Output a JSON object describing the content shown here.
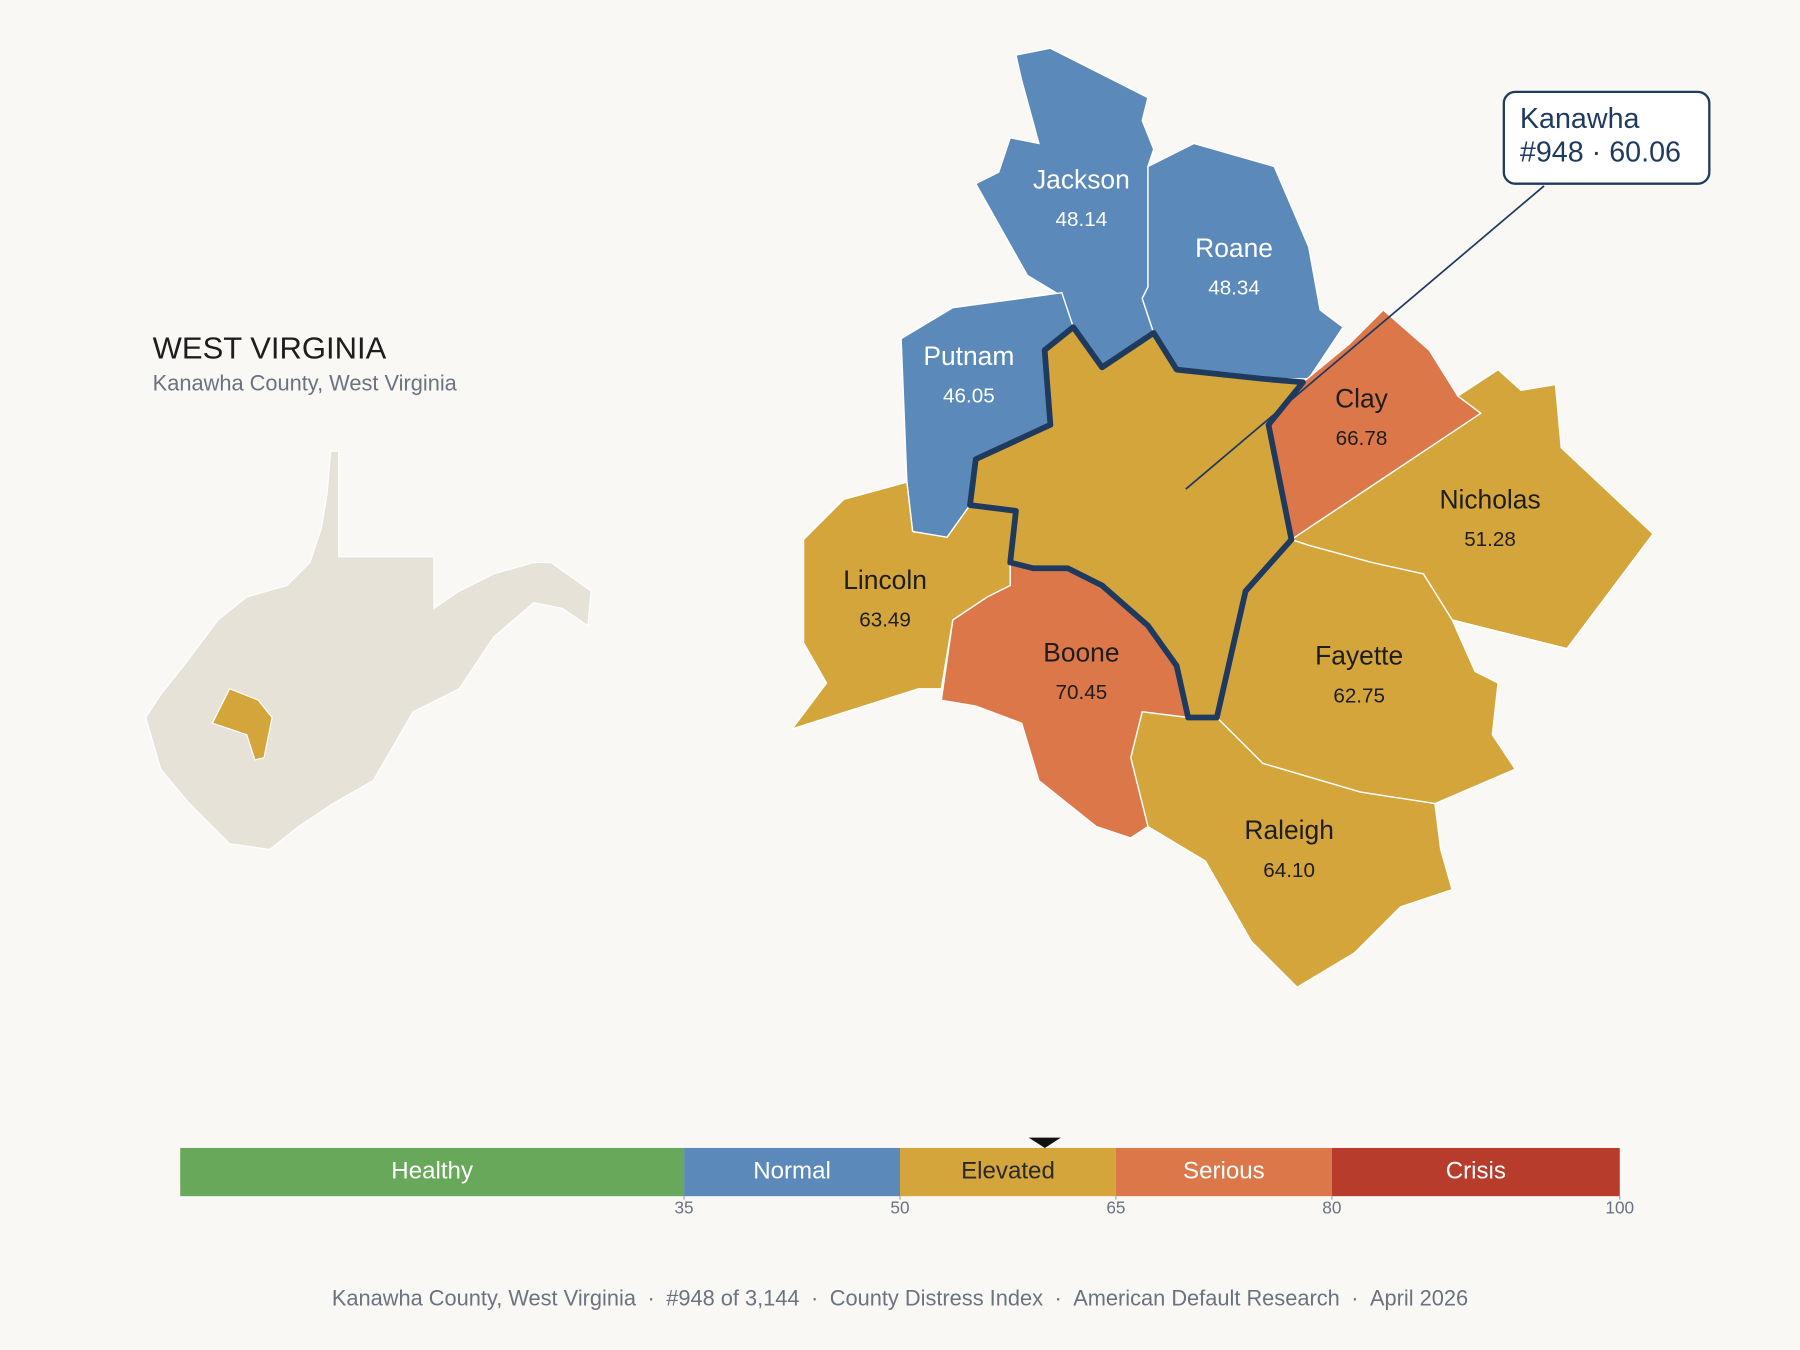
{
  "header": {
    "title": "WEST VIRGINIA",
    "subtitle": "Kanawha County, West Virginia"
  },
  "selected": {
    "name": "Kanawha",
    "value": 60.06,
    "label": "#948 · 60.06"
  },
  "counties": [
    {
      "name": "Jackson",
      "value": 48.14,
      "value_label": "48.14"
    },
    {
      "name": "Roane",
      "value": 48.34,
      "value_label": "48.34"
    },
    {
      "name": "Putnam",
      "value": 46.05,
      "value_label": "46.05"
    },
    {
      "name": "Clay",
      "value": 66.78,
      "value_label": "66.78"
    },
    {
      "name": "Nicholas",
      "value": 51.28,
      "value_label": "51.28"
    },
    {
      "name": "Fayette",
      "value": 62.75,
      "value_label": "62.75"
    },
    {
      "name": "Raleigh",
      "value": 64.1,
      "value_label": "64.10"
    },
    {
      "name": "Boone",
      "value": 70.45,
      "value_label": "70.45"
    },
    {
      "name": "Lincoln",
      "value": 63.49,
      "value_label": "63.49"
    }
  ],
  "scale": {
    "lim": [
      0,
      100
    ],
    "ticks": [
      35,
      50,
      65,
      80,
      100
    ],
    "bands": [
      {
        "name": "Healthy",
        "color": "#67a85a",
        "text_color": "#ffffff",
        "map_text_color": "#ffffff"
      },
      {
        "name": "Normal",
        "color": "#5b8aba",
        "text_color": "#ffffff",
        "map_text_color": "#ffffff"
      },
      {
        "name": "Elevated",
        "color": "#d4a53a",
        "text_color": "#2a2a2a",
        "map_text_color": "#1e1e1e"
      },
      {
        "name": "Serious",
        "color": "#dc774a",
        "text_color": "#ffffff",
        "map_text_color": "#1e1e1e"
      },
      {
        "name": "Crisis",
        "color": "#b83c2c",
        "text_color": "#ffffff",
        "map_text_color": "#ffffff"
      }
    ]
  },
  "footer": {
    "items": [
      "Kanawha County, West Virginia",
      "#948 of 3,144",
      "County Distress Index",
      "American Default Research",
      "April 2026"
    ],
    "separator": "·"
  }
}
